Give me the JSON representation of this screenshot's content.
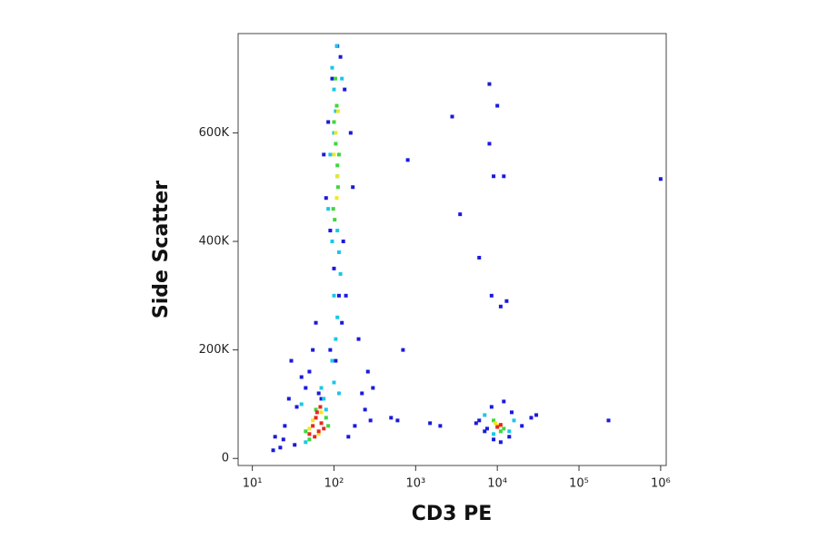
{
  "chart_data": {
    "type": "scatter",
    "xlabel": "CD3 PE",
    "ylabel": "Side Scatter",
    "xscale": "log",
    "xlim": [
      6.7,
      1170000
    ],
    "xticks": [
      {
        "value": 10,
        "label": "10¹"
      },
      {
        "value": 100,
        "label": "10²"
      },
      {
        "value": 1000,
        "label": "10³"
      },
      {
        "value": 10000,
        "label": "10⁴"
      },
      {
        "value": 100000,
        "label": "10⁵"
      },
      {
        "value": 1000000,
        "label": "10⁶"
      }
    ],
    "ylim": [
      -13000,
      783000
    ],
    "yticks": [
      0,
      {
        "value": 200000,
        "label": "200K"
      },
      {
        "value": 400000,
        "label": "400K"
      },
      {
        "value": 600000,
        "label": "600K"
      }
    ],
    "series": [
      {
        "color": "#1a1adc",
        "x": [
          22,
          28,
          35,
          40,
          30,
          18,
          25,
          150,
          180,
          220,
          260,
          200,
          140,
          130,
          90,
          80,
          75,
          85,
          95,
          110,
          120,
          135,
          160,
          170,
          60,
          55,
          50,
          45,
          100,
          115,
          125,
          105,
          90,
          70,
          65,
          240,
          300,
          19,
          24,
          33,
          280,
          6000,
          7000,
          8500,
          9000,
          12000,
          15000,
          20000,
          26000,
          30000,
          14000,
          7500,
          11000,
          5500,
          2800,
          8000,
          10000,
          3500,
          6000,
          11000,
          8500,
          12000,
          800,
          700,
          230000,
          1000000,
          9000,
          13000,
          8000,
          2000,
          1500,
          600,
          500
        ],
        "y": [
          20000,
          110000,
          95000,
          150000,
          180000,
          15000,
          60000,
          40000,
          60000,
          120000,
          160000,
          220000,
          300000,
          400000,
          420000,
          480000,
          560000,
          620000,
          700000,
          760000,
          740000,
          680000,
          600000,
          500000,
          250000,
          200000,
          160000,
          130000,
          350000,
          300000,
          250000,
          180000,
          200000,
          110000,
          120000,
          90000,
          130000,
          40000,
          35000,
          25000,
          70000,
          70000,
          50000,
          95000,
          35000,
          105000,
          85000,
          60000,
          75000,
          80000,
          40000,
          55000,
          30000,
          65000,
          630000,
          690000,
          650000,
          450000,
          370000,
          280000,
          300000,
          520000,
          550000,
          200000,
          70000,
          515000,
          520000,
          290000,
          580000,
          60000,
          65000,
          70000,
          75000
        ]
      },
      {
        "color": "#19c8e8",
        "x": [
          95,
          100,
          105,
          110,
          115,
          120,
          100,
          110,
          105,
          95,
          100,
          115,
          125,
          90,
          85,
          40,
          45,
          75,
          80,
          70,
          95,
          110,
          7000,
          9000,
          14000,
          16000,
          100,
          108
        ],
        "y": [
          720000,
          680000,
          640000,
          420000,
          380000,
          340000,
          300000,
          260000,
          220000,
          180000,
          140000,
          120000,
          700000,
          560000,
          460000,
          100000,
          30000,
          110000,
          90000,
          130000,
          400000,
          520000,
          80000,
          45000,
          50000,
          70000,
          600000,
          760000
        ]
      },
      {
        "color": "#3ed63e",
        "x": [
          100,
          105,
          110,
          112,
          98,
          108,
          102,
          115,
          60,
          80,
          50,
          45,
          85,
          9000,
          12000,
          11000,
          104
        ],
        "y": [
          620000,
          580000,
          540000,
          500000,
          460000,
          650000,
          440000,
          560000,
          90000,
          75000,
          35000,
          50000,
          60000,
          70000,
          55000,
          50000,
          700000
        ]
      },
      {
        "color": "#f0e81e",
        "x": [
          105,
          110,
          100,
          108,
          55,
          70,
          65,
          10500,
          9500,
          50,
          112
        ],
        "y": [
          600000,
          520000,
          560000,
          480000,
          70000,
          85000,
          45000,
          60000,
          65000,
          55000,
          640000
        ]
      },
      {
        "color": "#e8281e",
        "x": [
          55,
          60,
          65,
          70,
          62,
          58,
          68,
          75,
          50,
          10000,
          11000
        ],
        "y": [
          60000,
          75000,
          50000,
          65000,
          85000,
          40000,
          95000,
          55000,
          45000,
          58000,
          62000
        ]
      }
    ]
  }
}
